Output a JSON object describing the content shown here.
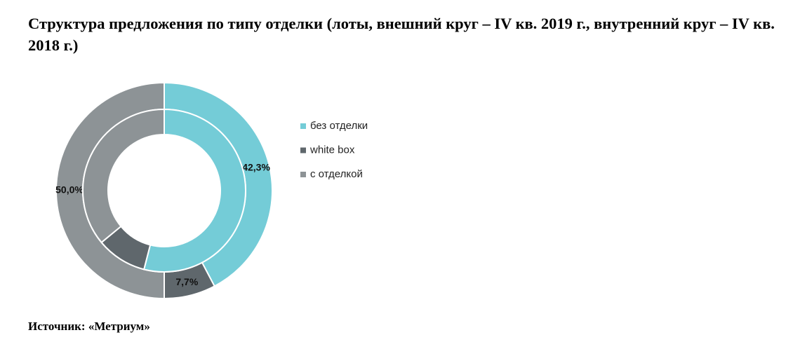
{
  "chart_data": {
    "type": "donut",
    "title": "Структура предложения по типу отделки (лоты, внешний круг – IV кв. 2019 г., внутренний круг – IV кв. 2018 г.)",
    "categories": [
      "без отделки",
      "white box",
      "с отделкой"
    ],
    "colors": [
      "#74ccd7",
      "#5f676c",
      "#8d9396"
    ],
    "series": [
      {
        "values": [
          42.3,
          7.7,
          50.0
        ],
        "value_labels": [
          "42,3%",
          "7,7%",
          "50,0%"
        ]
      },
      {
        "values": [
          54,
          10,
          36
        ]
      }
    ],
    "source": "Источник: «Метриум»"
  }
}
